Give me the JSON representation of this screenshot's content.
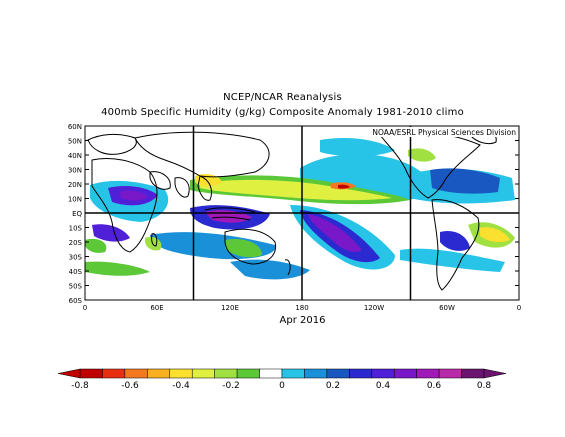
{
  "header": {
    "line1": "NCEP/NCAR Reanalysis",
    "line2": "400mb Specific Humidity (g/kg) Composite Anomaly 1981-2010 climo"
  },
  "map": {
    "credit": "NOAA/ESRL Physical Sciences Division",
    "lat_labels": [
      "60N",
      "50N",
      "40N",
      "30N",
      "20N",
      "10N",
      "EQ",
      "10S",
      "20S",
      "30S",
      "40S",
      "50S",
      "60S"
    ],
    "lon_labels": [
      "0",
      "60E",
      "120E",
      "180",
      "120W",
      "60W",
      "0"
    ],
    "date_label": "Apr 2016"
  },
  "colorbar": {
    "labels": [
      "-0.8",
      "-0.6",
      "-0.4",
      "-0.2",
      "0",
      "0.2",
      "0.4",
      "0.6",
      "0.8"
    ],
    "colors": [
      "#c00000",
      "#e83010",
      "#f47820",
      "#f8b020",
      "#fce030",
      "#e0f040",
      "#a0e040",
      "#5cc838",
      "#ffffff",
      "#28c4e8",
      "#1a90d8",
      "#1858c0",
      "#2a2ad0",
      "#5020d8",
      "#7818c8",
      "#a018b8",
      "#b82aa8",
      "#6a1470"
    ]
  }
}
